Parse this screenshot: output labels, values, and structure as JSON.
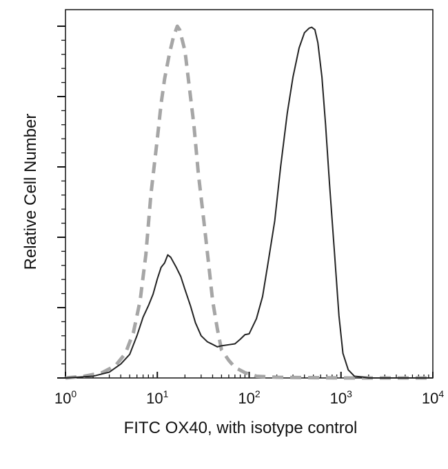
{
  "chart_data": {
    "type": "line",
    "title": "",
    "xlabel": "FITC OX40, with isotype control",
    "ylabel": "Relative Cell Number",
    "x_scale": "log",
    "xlim": [
      1,
      10000
    ],
    "ylim": [
      0,
      100
    ],
    "grid": false,
    "legend": "none",
    "x_ticks": [
      {
        "base": "10",
        "exp": "0",
        "value": 1
      },
      {
        "base": "10",
        "exp": "1",
        "value": 10
      },
      {
        "base": "10",
        "exp": "2",
        "value": 100
      },
      {
        "base": "10",
        "exp": "3",
        "value": 1000
      },
      {
        "base": "10",
        "exp": "4",
        "value": 10000
      }
    ],
    "y_major_ticks": [
      0,
      20,
      40,
      60,
      80,
      100
    ],
    "series": [
      {
        "style": "dashed",
        "color": "#a6a6a6",
        "x": [
          1,
          1.6,
          2.5,
          3.5,
          4.5,
          5.5,
          6.5,
          7.5,
          8.5,
          10,
          11,
          12,
          13.5,
          15,
          16.5,
          17.5,
          20,
          22,
          25,
          28,
          32,
          36,
          40,
          45,
          50,
          60,
          70,
          90,
          120,
          200,
          1000,
          10000
        ],
        "y": [
          0,
          0.5,
          1.5,
          3.5,
          7,
          13,
          22,
          35,
          52,
          68,
          78,
          85,
          92,
          97,
          100,
          99,
          93,
          84,
          72,
          58,
          45,
          33,
          22,
          14,
          8,
          5,
          3,
          1.5,
          0.5,
          0.2,
          0,
          0
        ]
      },
      {
        "style": "solid",
        "color": "#222222",
        "x": [
          1,
          2,
          3,
          4,
          5,
          6,
          7,
          8,
          9,
          10,
          11,
          12,
          13,
          14,
          16,
          18,
          20,
          23,
          26,
          30,
          35,
          40,
          45,
          50,
          60,
          70,
          80,
          90,
          100,
          120,
          140,
          160,
          190,
          220,
          260,
          300,
          350,
          400,
          450,
          480,
          520,
          560,
          620,
          680,
          750,
          850,
          950,
          1050,
          1200,
          1400,
          1700,
          2000,
          3000,
          10000
        ],
        "y": [
          0,
          0.5,
          1.5,
          3.5,
          7,
          12,
          17,
          21,
          24,
          28,
          31,
          33,
          35,
          34,
          32,
          29,
          25,
          20,
          16,
          12,
          10,
          10,
          9,
          9,
          9,
          10,
          11,
          12,
          13,
          17,
          23,
          32,
          45,
          60,
          75,
          86,
          94,
          98,
          99,
          100,
          99,
          95,
          86,
          72,
          55,
          35,
          18,
          7,
          2,
          0.5,
          0.3,
          0,
          0,
          0
        ]
      }
    ]
  }
}
